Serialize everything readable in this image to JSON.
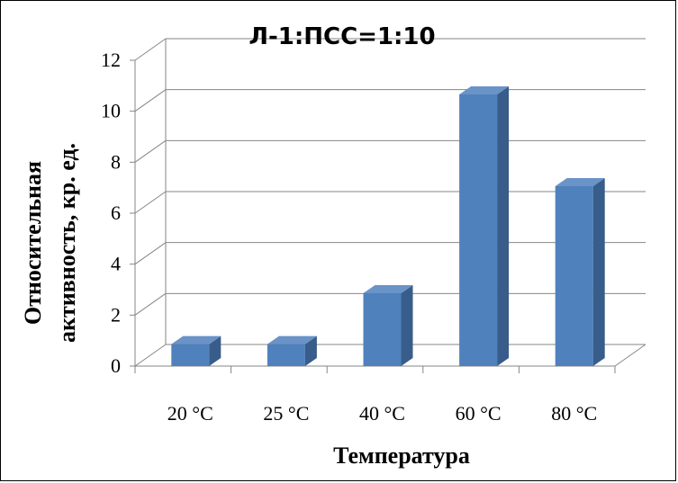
{
  "chart_data": {
    "type": "bar",
    "title": "Л-1:ПСС=1:10",
    "categories": [
      "20 °С",
      "25 °С",
      "40 °С",
      "60 °С",
      "80 °С"
    ],
    "series": [
      {
        "values": [
          1.0,
          1.0,
          3.0,
          10.8,
          7.2
        ]
      }
    ],
    "xlabel": "Температура",
    "ylabel": [
      "Относительная",
      "активность, кр. ед."
    ],
    "ylim": [
      0,
      12
    ],
    "yticks": [
      "0",
      "2",
      "4",
      "6",
      "8",
      "10",
      "12"
    ],
    "grid": true,
    "legend": "none",
    "style": "3d-column",
    "colors": {
      "front": "#4f81bd",
      "side": "#385d8a",
      "top": "#6a93c8",
      "grid": "#868686"
    }
  }
}
